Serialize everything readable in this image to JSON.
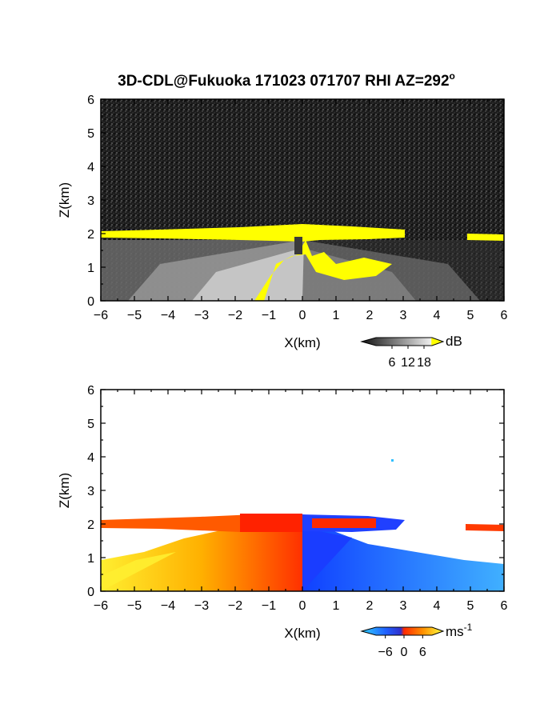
{
  "figure": {
    "title": "3D-CDL@Fukuoka 171023 071707 RHI AZ=292",
    "title_superscript": "o"
  },
  "chart_data": [
    {
      "type": "heatmap",
      "panel": "reflectivity",
      "xlabel": "X(km)",
      "ylabel": "Z(km)",
      "xlim": [
        -6,
        6
      ],
      "ylim": [
        0,
        6
      ],
      "xticks": [
        "-6",
        "-5",
        "-4",
        "-3",
        "-2",
        "-1",
        "0",
        "1",
        "2",
        "3",
        "4",
        "5",
        "6"
      ],
      "yticks": [
        "0",
        "1",
        "2",
        "3",
        "4",
        "5",
        "6"
      ],
      "colorbar": {
        "unit": "dB",
        "ticks": [
          "6",
          "12",
          "18"
        ],
        "range": [
          0,
          21
        ]
      },
      "colors": {
        "background_noise": "#1a1a1a",
        "high": "#ffff00"
      },
      "features": {
        "layer_base_km": 1.87,
        "layer_top_km": 2.1,
        "layer_x_range_km": [
          -6,
          3.0
        ],
        "second_layer_x_range_km": [
          4.9,
          6
        ],
        "gap_x_km": [
          -0.2,
          0.1
        ]
      }
    },
    {
      "type": "heatmap",
      "panel": "doppler_velocity",
      "xlabel": "X(km)",
      "ylabel": "Z(km)",
      "xlim": [
        -6,
        6
      ],
      "ylim": [
        0,
        6
      ],
      "xticks": [
        "-6",
        "-5",
        "-4",
        "-3",
        "-2",
        "-1",
        "0",
        "1",
        "2",
        "3",
        "4",
        "5",
        "6"
      ],
      "yticks": [
        "0",
        "1",
        "2",
        "3",
        "4",
        "5",
        "6"
      ],
      "colorbar": {
        "unit": "ms",
        "unit_superscript": "-1",
        "ticks": [
          "-6",
          "0",
          "6"
        ],
        "range": [
          -9,
          9
        ]
      },
      "colors": {
        "negative": "#1e5bff",
        "near_zero": "#ff2a00",
        "positive": "#ffe600"
      }
    }
  ]
}
